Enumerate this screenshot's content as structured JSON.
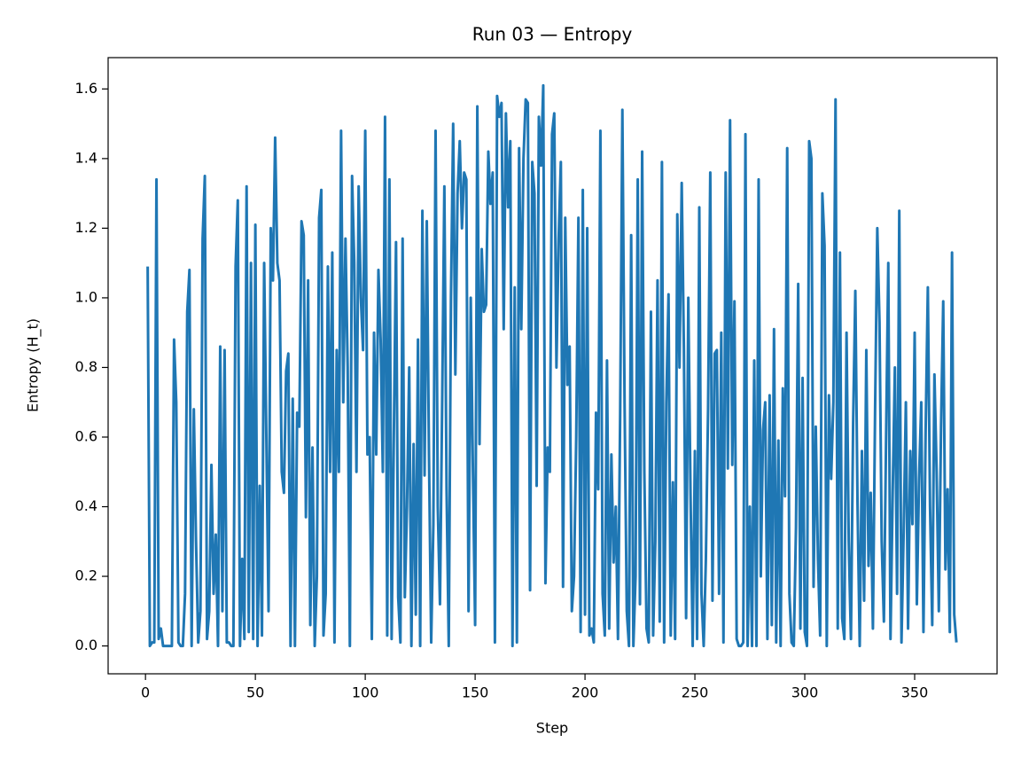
{
  "chart_data": {
    "type": "line",
    "title": "Run 03 — Entropy",
    "x_label": "Step",
    "y_label": "Entropy (H_t)",
    "xlim": [
      -17,
      387.5
    ],
    "ylim": [
      -0.08,
      1.69
    ],
    "xticks": [
      0,
      50,
      100,
      150,
      200,
      250,
      300,
      350
    ],
    "yticks": [
      {
        "value": 0,
        "label": "0.0"
      },
      0.2,
      0.4,
      0.6,
      0.8,
      {
        "value": 1,
        "label": "1.0"
      },
      1.2,
      1.4,
      1.6
    ],
    "grid": false,
    "series": [
      {
        "name": "Entropy",
        "color": "#1f77b4",
        "x": [
          1,
          2,
          3,
          4,
          5,
          6,
          7,
          8,
          9,
          10,
          11,
          12,
          13,
          14,
          15,
          16,
          17,
          18,
          19,
          20,
          21,
          22,
          23,
          24,
          25,
          26,
          27,
          28,
          29,
          30,
          31,
          32,
          33,
          34,
          35,
          36,
          37,
          38,
          39,
          40,
          41,
          42,
          43,
          44,
          45,
          46,
          47,
          48,
          49,
          50,
          51,
          52,
          53,
          54,
          55,
          56,
          57,
          58,
          59,
          60,
          61,
          62,
          63,
          64,
          65,
          66,
          67,
          68,
          69,
          70,
          71,
          72,
          73,
          74,
          75,
          76,
          77,
          78,
          79,
          80,
          81,
          82,
          83,
          84,
          85,
          86,
          87,
          88,
          89,
          90,
          91,
          92,
          93,
          94,
          95,
          96,
          97,
          98,
          99,
          100,
          101,
          102,
          103,
          104,
          105,
          106,
          107,
          108,
          109,
          110,
          111,
          112,
          113,
          114,
          115,
          116,
          117,
          118,
          119,
          120,
          121,
          122,
          123,
          124,
          125,
          126,
          127,
          128,
          129,
          130,
          131,
          132,
          133,
          134,
          135,
          136,
          137,
          138,
          139,
          140,
          141,
          142,
          143,
          144,
          145,
          146,
          147,
          148,
          149,
          150,
          151,
          152,
          153,
          154,
          155,
          156,
          157,
          158,
          159,
          160,
          161,
          162,
          163,
          164,
          165,
          166,
          167,
          168,
          169,
          170,
          171,
          172,
          173,
          174,
          175,
          176,
          177,
          178,
          179,
          180,
          181,
          182,
          183,
          184,
          185,
          186,
          187,
          188,
          189,
          190,
          191,
          192,
          193,
          194,
          195,
          196,
          197,
          198,
          199,
          200,
          201,
          202,
          203,
          204,
          205,
          206,
          207,
          208,
          209,
          210,
          211,
          212,
          213,
          214,
          215,
          216,
          217,
          218,
          219,
          220,
          221,
          222,
          223,
          224,
          225,
          226,
          227,
          228,
          229,
          230,
          231,
          232,
          233,
          234,
          235,
          236,
          237,
          238,
          239,
          240,
          241,
          242,
          243,
          244,
          245,
          246,
          247,
          248,
          249,
          250,
          251,
          252,
          253,
          254,
          255,
          256,
          257,
          258,
          259,
          260,
          261,
          262,
          263,
          264,
          265,
          266,
          267,
          268,
          269,
          270,
          271,
          272,
          273,
          274,
          275,
          276,
          277,
          278,
          279,
          280,
          281,
          282,
          283,
          284,
          285,
          286,
          287,
          288,
          289,
          290,
          291,
          292,
          293,
          294,
          295,
          296,
          297,
          298,
          299,
          300,
          301,
          302,
          303,
          304,
          305,
          306,
          307,
          308,
          309,
          310,
          311,
          312,
          313,
          314,
          315,
          316,
          317,
          318,
          319,
          320,
          321,
          322,
          323,
          324,
          325,
          326,
          327,
          328,
          329,
          330,
          331,
          332,
          333,
          334,
          335,
          336,
          337,
          338,
          339,
          340,
          341,
          342,
          343,
          344,
          345,
          346,
          347,
          348,
          349,
          350,
          351,
          352,
          353,
          354,
          355,
          356,
          357,
          358,
          359,
          360,
          361,
          362,
          363,
          364,
          365,
          366,
          367,
          368,
          369
        ],
        "values": [
          1.09,
          0.0,
          0.01,
          0.01,
          1.34,
          0.02,
          0.05,
          0.0,
          0.0,
          0.0,
          0.0,
          0.0,
          0.88,
          0.7,
          0.01,
          0.0,
          0.0,
          0.15,
          0.96,
          1.08,
          0.0,
          0.68,
          0.3,
          0.01,
          0.1,
          1.17,
          1.35,
          0.02,
          0.1,
          0.52,
          0.15,
          0.32,
          0.0,
          0.86,
          0.1,
          0.85,
          0.01,
          0.01,
          0.0,
          0.0,
          1.09,
          1.28,
          0.0,
          0.25,
          0.02,
          1.32,
          0.04,
          1.1,
          0.02,
          1.21,
          0.0,
          0.46,
          0.03,
          1.1,
          0.6,
          0.1,
          1.2,
          1.05,
          1.46,
          1.1,
          1.05,
          0.5,
          0.44,
          0.79,
          0.84,
          0.0,
          0.71,
          0.0,
          0.67,
          0.63,
          1.22,
          1.18,
          0.37,
          1.05,
          0.06,
          0.57,
          0.0,
          0.2,
          1.23,
          1.31,
          0.03,
          0.15,
          1.09,
          0.5,
          1.13,
          0.01,
          0.85,
          0.5,
          1.48,
          0.7,
          1.17,
          0.8,
          0.0,
          1.35,
          1.1,
          0.5,
          1.32,
          1.0,
          0.85,
          1.48,
          0.55,
          0.6,
          0.02,
          0.9,
          0.55,
          1.08,
          0.88,
          0.5,
          1.52,
          0.03,
          1.34,
          0.02,
          0.6,
          1.16,
          0.14,
          0.01,
          1.17,
          0.14,
          0.4,
          0.8,
          0.0,
          0.58,
          0.09,
          0.88,
          0.0,
          1.25,
          0.49,
          1.22,
          0.55,
          0.01,
          0.35,
          1.48,
          0.4,
          0.12,
          0.7,
          1.32,
          0.45,
          0.0,
          1.0,
          1.5,
          0.78,
          1.3,
          1.45,
          1.2,
          1.36,
          1.34,
          0.1,
          1.0,
          0.5,
          0.06,
          1.55,
          0.58,
          1.14,
          0.96,
          0.98,
          1.42,
          1.27,
          1.36,
          0.01,
          1.58,
          1.52,
          1.56,
          0.91,
          1.53,
          1.26,
          1.45,
          0.0,
          1.03,
          0.01,
          1.43,
          0.91,
          1.4,
          1.57,
          1.56,
          0.16,
          1.39,
          1.3,
          0.46,
          1.52,
          1.38,
          1.61,
          0.18,
          0.57,
          0.5,
          1.47,
          1.53,
          0.8,
          1.17,
          1.39,
          0.17,
          1.23,
          0.75,
          0.86,
          0.1,
          0.2,
          0.6,
          1.23,
          0.04,
          1.31,
          0.09,
          1.2,
          0.03,
          0.05,
          0.01,
          0.67,
          0.45,
          1.48,
          0.15,
          0.03,
          0.82,
          0.05,
          0.55,
          0.24,
          0.4,
          0.02,
          0.67,
          1.54,
          0.7,
          0.1,
          0.0,
          1.18,
          0.0,
          0.2,
          1.34,
          0.12,
          1.42,
          0.5,
          0.05,
          0.01,
          0.96,
          0.03,
          0.3,
          1.05,
          0.07,
          1.39,
          0.01,
          0.7,
          1.01,
          0.03,
          0.47,
          0.02,
          1.24,
          0.8,
          1.33,
          0.85,
          0.08,
          1.0,
          0.44,
          0.0,
          0.56,
          0.02,
          1.26,
          0.15,
          0.0,
          0.25,
          0.68,
          1.36,
          0.13,
          0.84,
          0.85,
          0.15,
          0.9,
          0.01,
          1.36,
          0.51,
          1.51,
          0.52,
          0.99,
          0.02,
          0.0,
          0.0,
          0.01,
          1.47,
          0.0,
          0.4,
          0.0,
          0.82,
          0.0,
          1.34,
          0.2,
          0.62,
          0.7,
          0.02,
          0.72,
          0.06,
          0.91,
          0.01,
          0.59,
          0.0,
          0.74,
          0.43,
          1.43,
          0.15,
          0.01,
          0.0,
          0.34,
          1.04,
          0.05,
          0.77,
          0.04,
          0.0,
          1.45,
          1.4,
          0.17,
          0.63,
          0.25,
          0.03,
          1.3,
          1.15,
          0.0,
          0.72,
          0.48,
          0.7,
          1.57,
          0.05,
          1.13,
          0.08,
          0.02,
          0.9,
          0.3,
          0.02,
          0.64,
          1.02,
          0.41,
          0.0,
          0.56,
          0.13,
          0.85,
          0.23,
          0.44,
          0.05,
          0.68,
          1.2,
          0.93,
          0.3,
          0.07,
          0.6,
          1.1,
          0.02,
          0.44,
          0.8,
          0.15,
          1.25,
          0.01,
          0.33,
          0.7,
          0.05,
          0.56,
          0.35,
          0.9,
          0.12,
          0.48,
          0.7,
          0.04,
          0.62,
          1.03,
          0.4,
          0.06,
          0.78,
          0.5,
          0.1,
          0.63,
          0.99,
          0.22,
          0.45,
          0.04,
          1.13,
          0.09,
          0.01
        ]
      }
    ]
  }
}
